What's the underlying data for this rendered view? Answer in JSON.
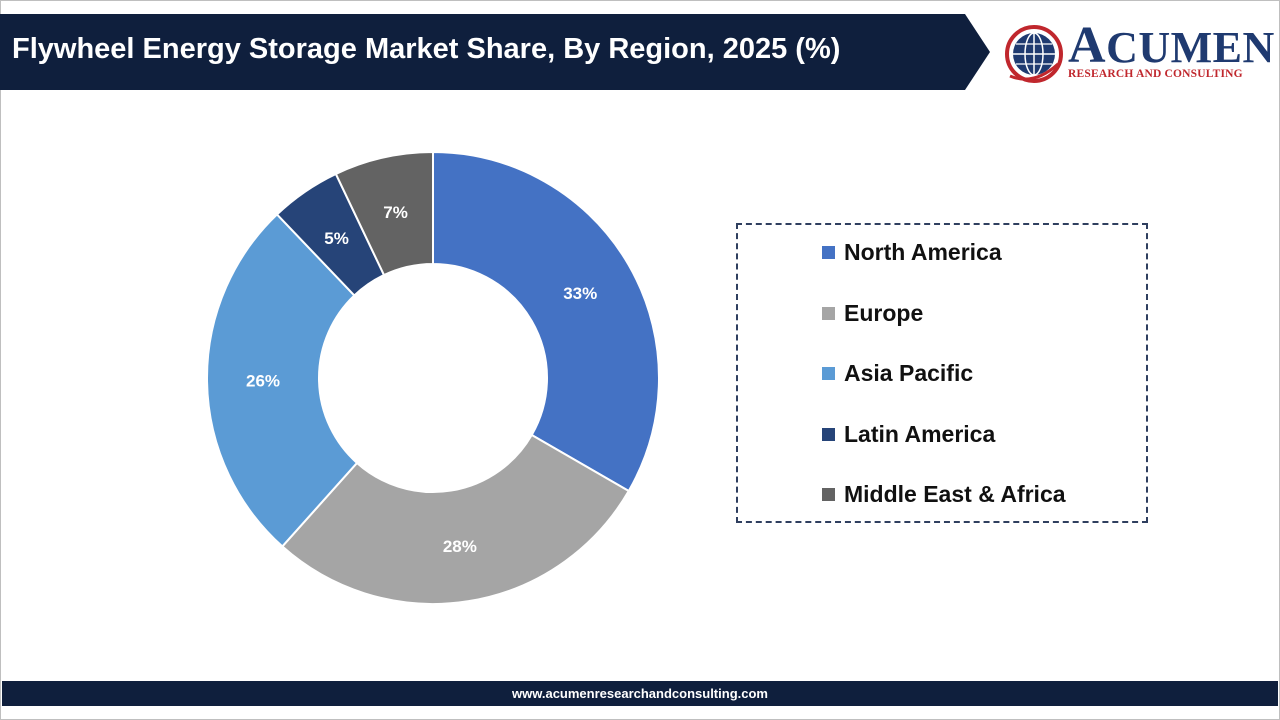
{
  "header": {
    "title": "Flywheel Energy Storage Market Share, By Region, 2025 (%)"
  },
  "logo": {
    "name": "CUMEN",
    "subtitle": "RESEARCH AND CONSULTING"
  },
  "colors": {
    "banner": "#0f1f3d",
    "logo_blue": "#1f3a70",
    "logo_red": "#c0272d"
  },
  "chart_data": {
    "type": "pie",
    "style": "donut",
    "title": "Flywheel Energy Storage Market Share, By Region, 2025 (%)",
    "categories": [
      "North America",
      "Europe",
      "Asia Pacific",
      "Latin America",
      "Middle East & Africa"
    ],
    "values": [
      33,
      28,
      26,
      5,
      7
    ],
    "labels": [
      "33%",
      "28%",
      "26%",
      "5%",
      "7%"
    ],
    "colors": [
      "#4472c4",
      "#a5a5a5",
      "#5b9bd5",
      "#264478",
      "#636363"
    ],
    "legend_position": "right"
  },
  "footer": {
    "url": "www.acumenresearchandconsulting.com"
  }
}
